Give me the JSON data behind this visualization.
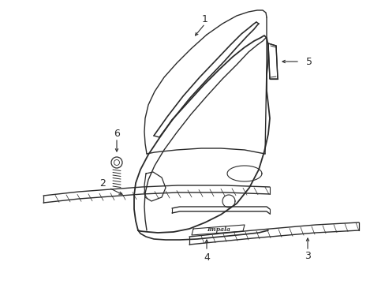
{
  "bg_color": "#ffffff",
  "line_color": "#2a2a2a",
  "text_color": "#2a2a2a",
  "fig_width": 4.89,
  "fig_height": 3.6,
  "dpi": 100,
  "impala_text": "Impala"
}
